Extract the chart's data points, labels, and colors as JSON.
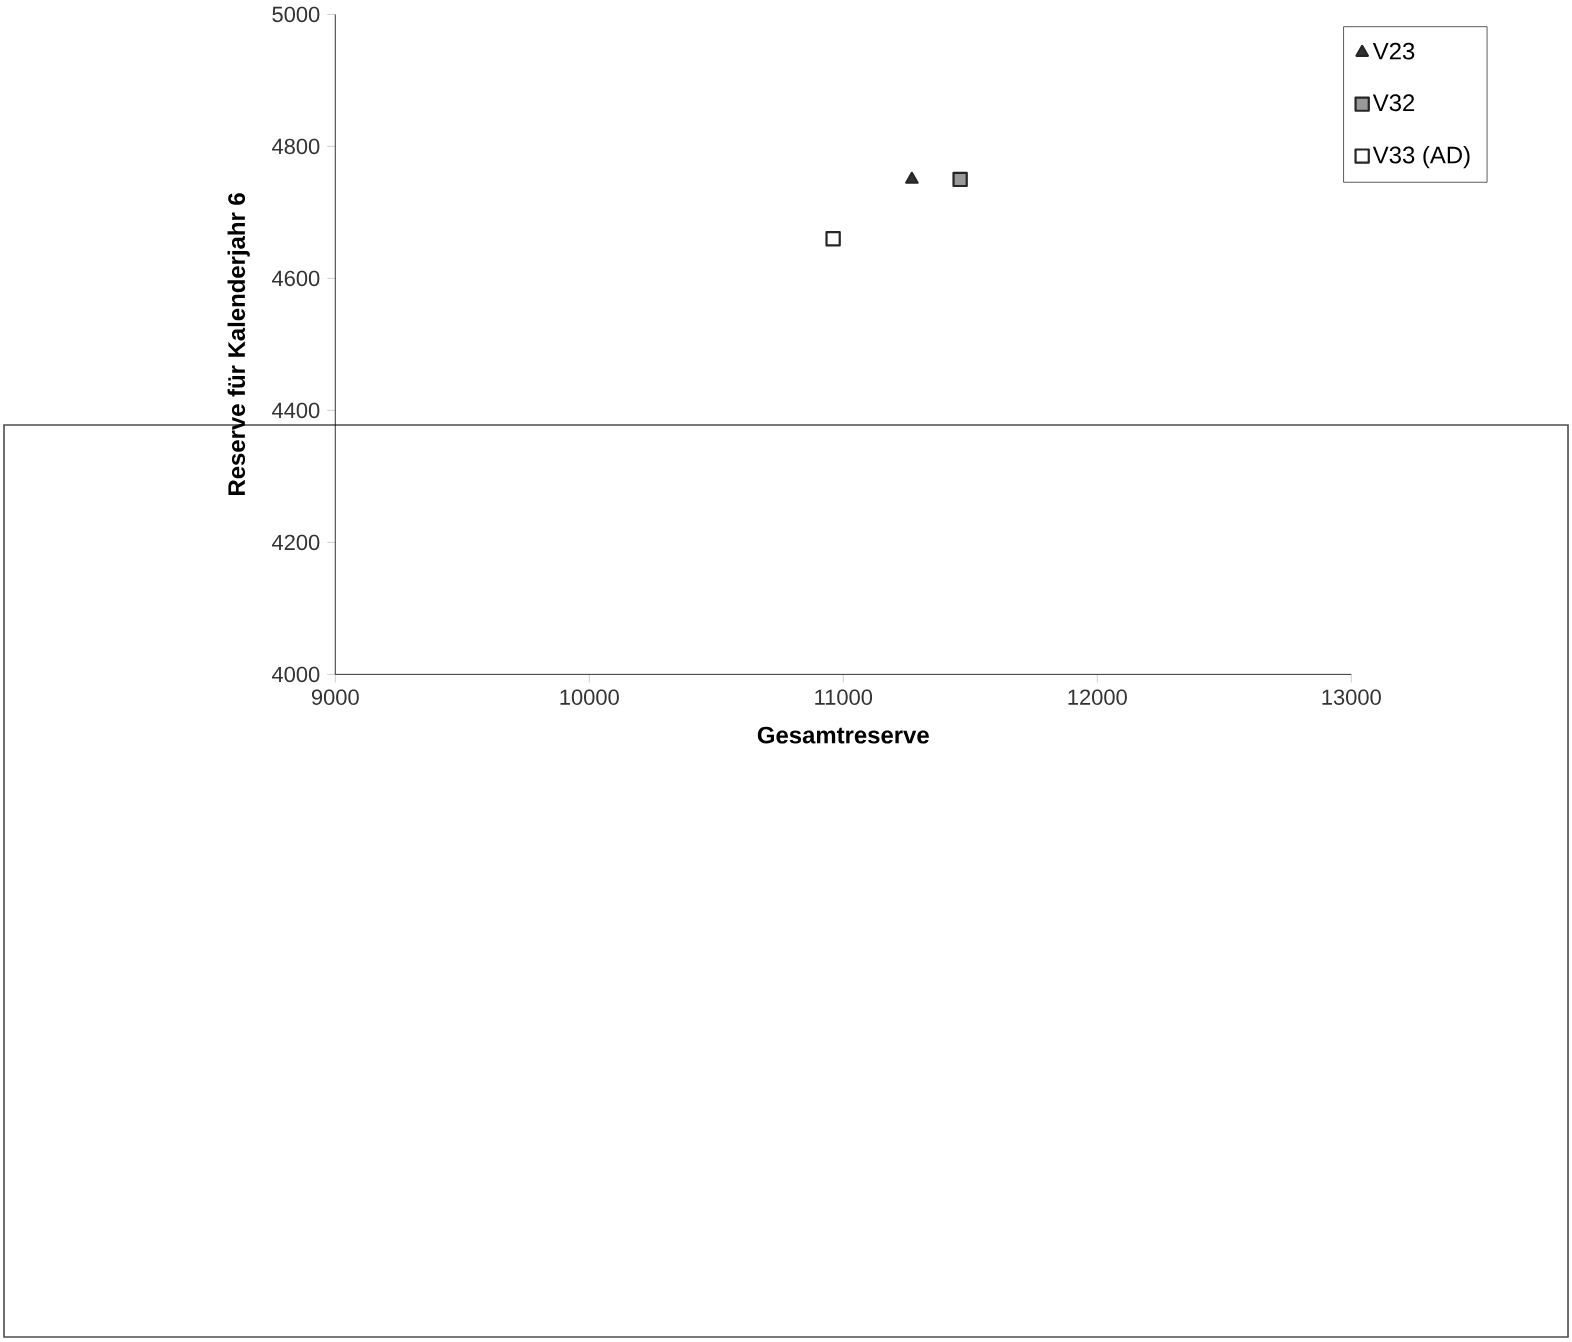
{
  "chart_data": {
    "type": "scatter",
    "xlabel": "Gesamtreserve",
    "ylabel": "Reserve für Kalenderjahr 6",
    "xlim": [
      9000,
      13000
    ],
    "xticks": [
      9000,
      10000,
      11000,
      12000,
      13000
    ],
    "ylim": [
      4000,
      5000
    ],
    "yticks": [
      4000,
      4200,
      4400,
      4600,
      4800,
      5000
    ],
    "grid": false,
    "legend": "top right",
    "series": [
      {
        "name": "V23",
        "color": "#333333",
        "marker": "triangle",
        "x": [
          11270
        ],
        "values": [
          4750
        ]
      },
      {
        "name": "V32",
        "color": "#999999",
        "marker": "square",
        "x": [
          11460
        ],
        "values": [
          4750
        ]
      },
      {
        "name": "V33 (AD)",
        "color": "#ffffff",
        "marker": "square",
        "x": [
          10960
        ],
        "values": [
          4660
        ]
      }
    ]
  }
}
